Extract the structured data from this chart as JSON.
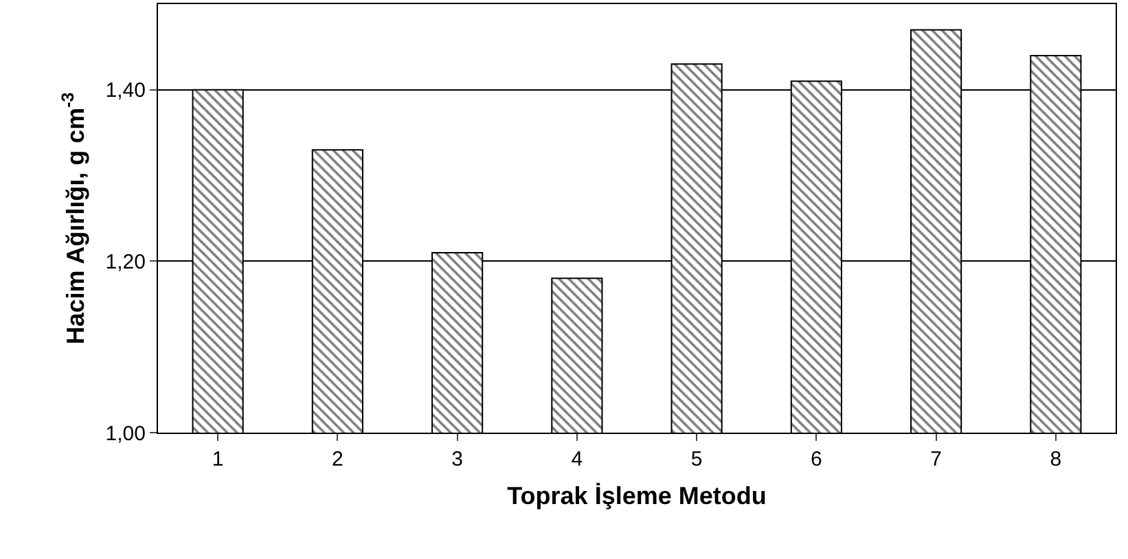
{
  "chart_data": {
    "type": "bar",
    "categories": [
      "1",
      "2",
      "3",
      "4",
      "5",
      "6",
      "7",
      "8"
    ],
    "values": [
      1.4,
      1.33,
      1.21,
      1.18,
      1.43,
      1.41,
      1.47,
      1.44
    ],
    "color": "#000000",
    "xlabel": "Toprak İşleme Metodu",
    "ylabel": "Hacim Ağırlığı, g cm$^{-3}$",
    "ylim": [
      1.0,
      1.5
    ],
    "yticks": [
      {
        "value": 1.0,
        "label": "1,00"
      },
      {
        "value": 1.2,
        "label": "1,20"
      },
      {
        "value": 1.4,
        "label": "1,40"
      }
    ],
    "grid": "y"
  }
}
